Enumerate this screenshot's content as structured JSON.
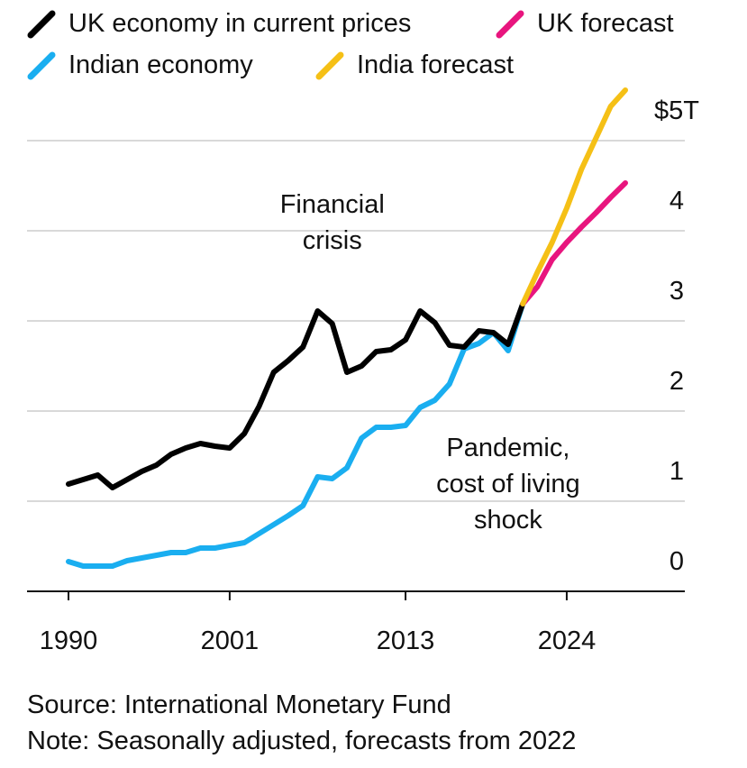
{
  "legend": {
    "uk": {
      "label": "UK economy in current prices",
      "color": "#000000"
    },
    "uk_forecast": {
      "label": "UK forecast",
      "color": "#E8157E"
    },
    "india": {
      "label": "Indian economy",
      "color": "#1AAEF0"
    },
    "india_forecast": {
      "label": "India forecast",
      "color": "#F5C016"
    }
  },
  "chart_data": {
    "type": "line",
    "title": "",
    "xlabel": "",
    "ylabel": "",
    "xlim": [
      1990,
      2028
    ],
    "ylim": [
      0,
      5
    ],
    "x_ticks": [
      1990,
      2001,
      2013,
      2024
    ],
    "x_tick_labels": [
      "1990",
      "2001",
      "2013",
      "2024"
    ],
    "y_ticks": [
      0,
      1,
      2,
      3,
      4,
      5
    ],
    "y_tick_labels": [
      "0",
      "1",
      "2",
      "3",
      "4",
      "$5T"
    ],
    "grid": true,
    "series": [
      {
        "name": "UK economy in current prices",
        "color": "#000000",
        "x": [
          1990,
          1991,
          1992,
          1993,
          1994,
          1995,
          1996,
          1997,
          1998,
          1999,
          2000,
          2001,
          2002,
          2003,
          2004,
          2005,
          2006,
          2007,
          2008,
          2009,
          2010,
          2011,
          2012,
          2013,
          2014,
          2015,
          2016,
          2017,
          2018,
          2019,
          2020,
          2021
        ],
        "y": [
          1.19,
          1.24,
          1.29,
          1.15,
          1.24,
          1.33,
          1.4,
          1.52,
          1.59,
          1.64,
          1.61,
          1.59,
          1.75,
          2.05,
          2.43,
          2.56,
          2.71,
          3.11,
          2.97,
          2.43,
          2.5,
          2.66,
          2.68,
          2.79,
          3.11,
          2.98,
          2.73,
          2.71,
          2.89,
          2.87,
          2.74,
          3.19
        ]
      },
      {
        "name": "UK forecast",
        "color": "#E8157E",
        "x": [
          2021,
          2022,
          2023,
          2024,
          2025,
          2026,
          2027,
          2028
        ],
        "y": [
          3.19,
          3.38,
          3.68,
          3.87,
          4.04,
          4.2,
          4.37,
          4.53
        ]
      },
      {
        "name": "Indian economy",
        "color": "#1AAEF0",
        "x": [
          1990,
          1991,
          1992,
          1993,
          1994,
          1995,
          1996,
          1997,
          1998,
          1999,
          2000,
          2001,
          2002,
          2003,
          2004,
          2005,
          2006,
          2007,
          2008,
          2009,
          2010,
          2011,
          2012,
          2013,
          2014,
          2015,
          2016,
          2017,
          2018,
          2019,
          2020,
          2021
        ],
        "y": [
          0.33,
          0.28,
          0.28,
          0.28,
          0.34,
          0.37,
          0.4,
          0.43,
          0.43,
          0.48,
          0.48,
          0.51,
          0.54,
          0.64,
          0.74,
          0.84,
          0.95,
          1.27,
          1.25,
          1.37,
          1.7,
          1.82,
          1.82,
          1.84,
          2.04,
          2.12,
          2.3,
          2.69,
          2.75,
          2.87,
          2.67,
          3.19
        ]
      },
      {
        "name": "India forecast",
        "color": "#F5C016",
        "x": [
          2021,
          2022,
          2023,
          2024,
          2025,
          2026,
          2027,
          2028
        ],
        "y": [
          3.19,
          3.54,
          3.87,
          4.25,
          4.68,
          5.03,
          5.38,
          5.56
        ]
      }
    ],
    "annotations": [
      {
        "text": "Financial crisis",
        "lines": [
          "Financial",
          "crisis"
        ],
        "x": 2008,
        "y": 4.2
      },
      {
        "text": "Pandemic, cost of living shock",
        "lines": [
          "Pandemic,",
          "cost of living",
          "shock"
        ],
        "x": 2020,
        "y": 1.5
      }
    ]
  },
  "footer": {
    "source": "Source: International Monetary Fund",
    "note": "Note: Seasonally adjusted, forecasts from 2022"
  }
}
